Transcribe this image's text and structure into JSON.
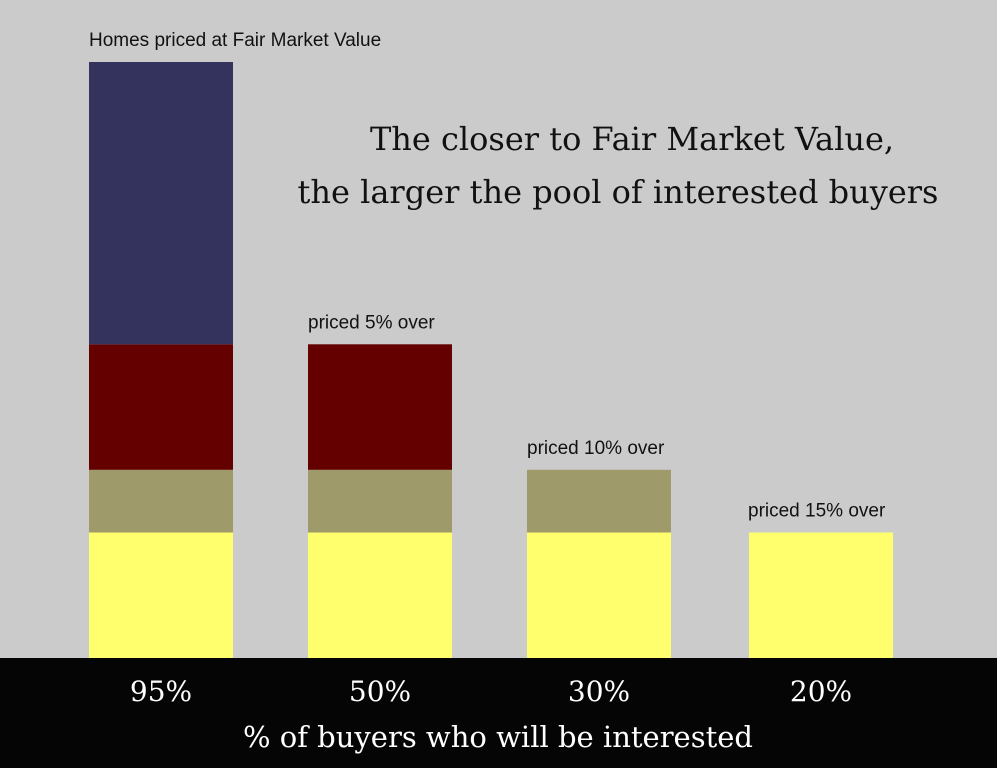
{
  "chart_data": {
    "type": "bar",
    "stacked": true,
    "title_lines": [
      "The closer to Fair Market Value,",
      "the larger the pool of interested buyers"
    ],
    "xlabel": "% of buyers who will be interested",
    "ylabel": "",
    "categories": [
      "95%",
      "50%",
      "30%",
      "20%"
    ],
    "bar_labels": [
      "Homes priced at Fair Market Value",
      "priced 5% over",
      "priced 10% over",
      "priced 15% over"
    ],
    "values": [
      95,
      50,
      30,
      20
    ],
    "series": [
      {
        "color": "#ffff6e",
        "values": [
          20,
          20,
          20,
          20
        ]
      },
      {
        "color": "#9e9a6a",
        "values": [
          10,
          10,
          10,
          0
        ]
      },
      {
        "color": "#640000",
        "values": [
          20,
          20,
          0,
          0
        ]
      },
      {
        "color": "#33335e",
        "values": [
          45,
          0,
          0,
          0
        ]
      }
    ],
    "grid": false,
    "legend": "none"
  }
}
